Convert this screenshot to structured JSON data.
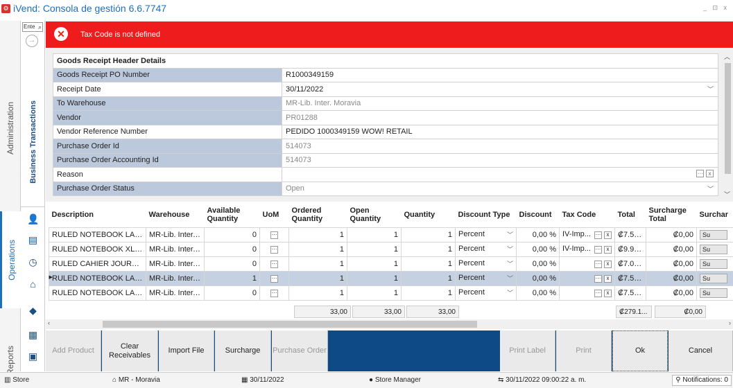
{
  "window": {
    "title": "iVend: Consola de gestión 6.6.7747",
    "controls": "_ ⊡ x"
  },
  "nav": {
    "administration": "Administration",
    "operations": "Operations",
    "reports": "Reports"
  },
  "sidebar": {
    "search_placeholder": "Ente",
    "business_transactions": "Business Transactions"
  },
  "error": {
    "message": "Tax Code is not defined"
  },
  "header": {
    "section_title": "Goods Receipt Header Details",
    "rows": [
      {
        "label": "Goods Receipt PO Number",
        "value": "R1000349159"
      },
      {
        "label": "Receipt Date",
        "value": "30/11/2022"
      },
      {
        "label": "To Warehouse",
        "value": "MR-Lib. Inter. Moravia"
      },
      {
        "label": "Vendor",
        "value": "PR01288"
      },
      {
        "label": "Vendor Reference Number",
        "value": "PEDIDO 1000349159 WOW! RETAIL"
      },
      {
        "label": "Purchase Order Id",
        "value": "514073"
      },
      {
        "label": "Purchase Order Accounting Id",
        "value": "514073"
      },
      {
        "label": "Reason",
        "value": ""
      },
      {
        "label": "Purchase Order Status",
        "value": "Open"
      }
    ]
  },
  "grid": {
    "columns": [
      "Description",
      "Warehouse",
      "Available Quantity",
      "UoM",
      "Ordered Quantity",
      "Open Quantity",
      "Quantity",
      "Discount Type",
      "Discount",
      "Tax Code",
      "Total",
      "Surcharge Total",
      "Surchar"
    ],
    "rows": [
      {
        "description": "RULED NOTEBOOK LARGE ...",
        "warehouse": "MR-Lib. Inter. ...",
        "available": "0",
        "ordered": "1",
        "open": "1",
        "quantity": "1",
        "discount_type": "Percent",
        "discount": "0,00 %",
        "tax_code": "IV-Imp...",
        "total": "₡7.56...",
        "surcharge_total": "₡0,00",
        "surchar": "Su"
      },
      {
        "description": "RULED NOTEBOOK XLARG...",
        "warehouse": "MR-Lib. Inter. ...",
        "available": "0",
        "ordered": "1",
        "open": "1",
        "quantity": "1",
        "discount_type": "Percent",
        "discount": "0,00 %",
        "tax_code": "IV-Imp...",
        "total": "₡9.92...",
        "surcharge_total": "₡0,00",
        "surchar": "Su"
      },
      {
        "description": "RULED CAHIER JOURNAL ...",
        "warehouse": "MR-Lib. Inter. ...",
        "available": "0",
        "ordered": "1",
        "open": "1",
        "quantity": "1",
        "discount_type": "Percent",
        "discount": "0,00 %",
        "tax_code": "",
        "total": "₡7.00...",
        "surcharge_total": "₡0,00",
        "surchar": "Su"
      },
      {
        "description": "RULED NOTEBOOK LARGE ...",
        "warehouse": "MR-Lib. Inter. ...",
        "available": "1",
        "ordered": "1",
        "open": "1",
        "quantity": "1",
        "discount_type": "Percent",
        "discount": "0,00 %",
        "tax_code": "",
        "total": "₡7.56...",
        "surcharge_total": "₡0,00",
        "surchar": "Su"
      },
      {
        "description": "RULED NOTEBOOK LARGE ...",
        "warehouse": "MR-Lib. Inter. ...",
        "available": "0",
        "ordered": "1",
        "open": "1",
        "quantity": "1",
        "discount_type": "Percent",
        "discount": "0,00 %",
        "tax_code": "",
        "total": "₡7.56...",
        "surcharge_total": "₡0,00",
        "surchar": "Su"
      }
    ],
    "totals": {
      "ordered": "33,00",
      "open": "33,00",
      "quantity": "33,00",
      "total": "₡279.1...",
      "surcharge": "₡0,00"
    }
  },
  "actions": {
    "add_product": "Add Product",
    "clear_receivables": "Clear Receivables",
    "import_file": "Import File",
    "surcharge": "Surcharge",
    "purchase_order": "Purchase Order",
    "print_label": "Print Label",
    "print": "Print",
    "ok": "Ok",
    "cancel": "Cancel"
  },
  "status": {
    "store": "Store",
    "location": "MR - Moravia",
    "date": "30/11/2022",
    "user": "Store Manager",
    "datetime": "30/11/2022 09:00:22 a. m.",
    "notifications": "Notifications: 0"
  }
}
